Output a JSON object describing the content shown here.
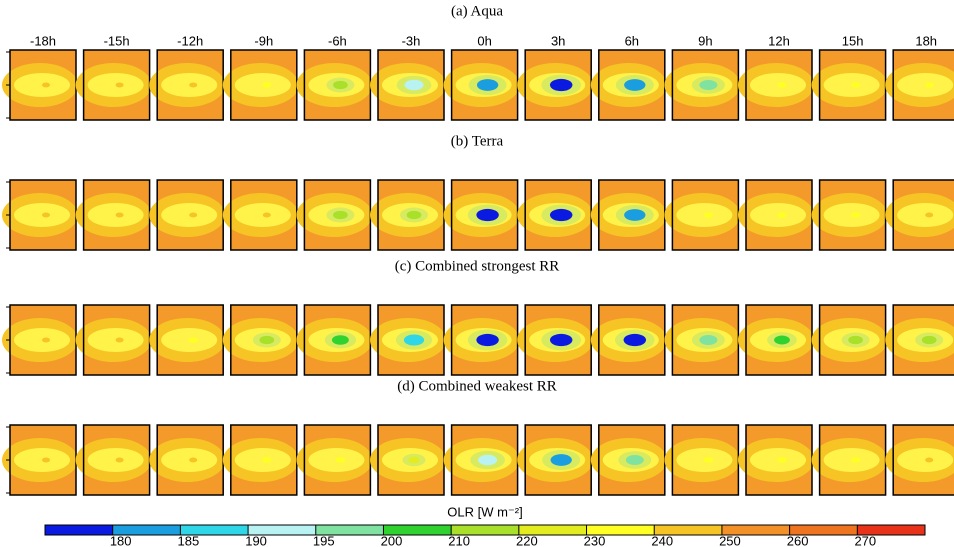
{
  "chart_data": {
    "type": "panel-grid",
    "categories": [
      "-18h",
      "-15h",
      "-12h",
      "-9h",
      "-6h",
      "-3h",
      "0h",
      "3h",
      "6h",
      "9h",
      "12h",
      "15h",
      "18h"
    ],
    "series": [
      {
        "name": "(a) Aqua",
        "values": [
          240,
          240,
          240,
          235,
          210,
          190,
          180,
          175,
          180,
          195,
          235,
          235,
          235
        ]
      },
      {
        "name": "(b) Terra",
        "values": [
          240,
          245,
          240,
          240,
          210,
          210,
          175,
          175,
          180,
          235,
          235,
          235,
          240
        ]
      },
      {
        "name": "(c) Combined strongest RR",
        "values": [
          240,
          240,
          235,
          210,
          200,
          185,
          175,
          175,
          175,
          195,
          205,
          210,
          210
        ]
      },
      {
        "name": "(d) Combined weakest RR",
        "values": [
          240,
          245,
          245,
          235,
          235,
          225,
          190,
          180,
          195,
          235,
          235,
          235,
          240
        ]
      }
    ],
    "colorbar": {
      "label": "OLR [W m⁻²]",
      "ticks": [
        180,
        185,
        190,
        195,
        200,
        210,
        220,
        230,
        240,
        250,
        260,
        270
      ],
      "colors": [
        "#0a1ae0",
        "#1a9ee0",
        "#2fd6e8",
        "#b8f2f2",
        "#80e2a0",
        "#2fd22f",
        "#a8e02a",
        "#e2ec1e",
        "#ffff24",
        "#f6c424",
        "#f39028",
        "#ef7420",
        "#e8321a"
      ]
    }
  }
}
